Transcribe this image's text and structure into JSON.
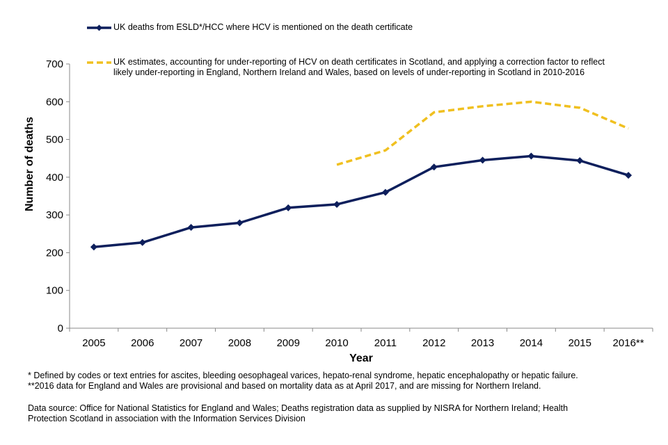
{
  "chart_data": {
    "type": "line",
    "xlabel": "Year",
    "ylabel": "Number of deaths",
    "ylim": [
      0,
      700
    ],
    "yticks": [
      0,
      100,
      200,
      300,
      400,
      500,
      600,
      700
    ],
    "categories": [
      "2005",
      "2006",
      "2007",
      "2008",
      "2009",
      "2010",
      "2011",
      "2012",
      "2013",
      "2014",
      "2015",
      "2016**"
    ],
    "grid": false,
    "legend_position": "top",
    "series": [
      {
        "name": "UK deaths from ESLD*/HCC where HCV is mentioned on the death certificate",
        "color": "#0d1f5c",
        "style": "solid",
        "marker": "diamond",
        "values": [
          215,
          227,
          267,
          279,
          319,
          328,
          360,
          427,
          445,
          456,
          444,
          405
        ]
      },
      {
        "name_lines": [
          "UK estimates, accounting for under-reporting of HCV on death certificates in Scotland, and applying a correction factor to reflect",
          "likely under-reporting in England, Northern Ireland and Wales, based on levels of under-reporting in Scotland in 2010-2016"
        ],
        "color": "#f0c020",
        "style": "dashed",
        "marker": "none",
        "values": [
          null,
          null,
          null,
          null,
          null,
          433,
          471,
          572,
          588,
          600,
          584,
          529
        ]
      }
    ]
  },
  "footnotes": {
    "line1": "* Defined  by codes or text entries for ascites, bleeding oesophageal varices,  hepato-renal  syndrome,  hepatic encephalopathy  or hepatic failure.",
    "line2": "**2016 data for England and Wales are provisional  and  based on mortality data as at April 2017, and are missing for Northern Ireland.",
    "source1": "Data source: Office for National Statistics for England and Wales;  Deaths registration data as supplied by NISRA for Northern Ireland;  Health",
    "source2": "Protection Scotland in association with the Information  Services Division"
  }
}
